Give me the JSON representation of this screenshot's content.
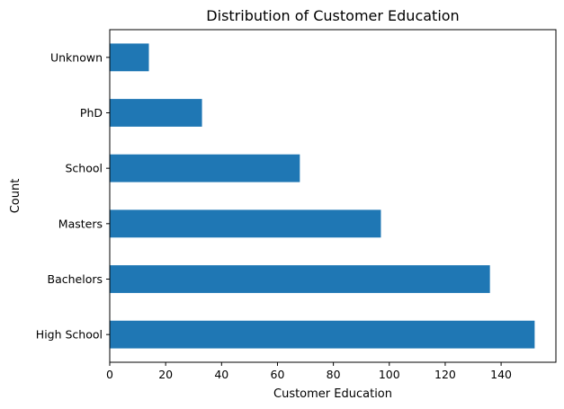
{
  "chart_data": {
    "type": "bar",
    "orientation": "horizontal",
    "title": "Distribution of Customer Education",
    "xlabel": "Customer Education",
    "ylabel": "Count",
    "categories": [
      "High School",
      "Bachelors",
      "Masters",
      "School",
      "PhD",
      "Unknown"
    ],
    "values": [
      152,
      136,
      97,
      68,
      33,
      14
    ],
    "xlim": [
      0,
      159.6
    ],
    "xticks": [
      0,
      20,
      40,
      60,
      80,
      100,
      120,
      140
    ],
    "bar_color": "#1f77b4",
    "grid": false,
    "legend": "none"
  }
}
